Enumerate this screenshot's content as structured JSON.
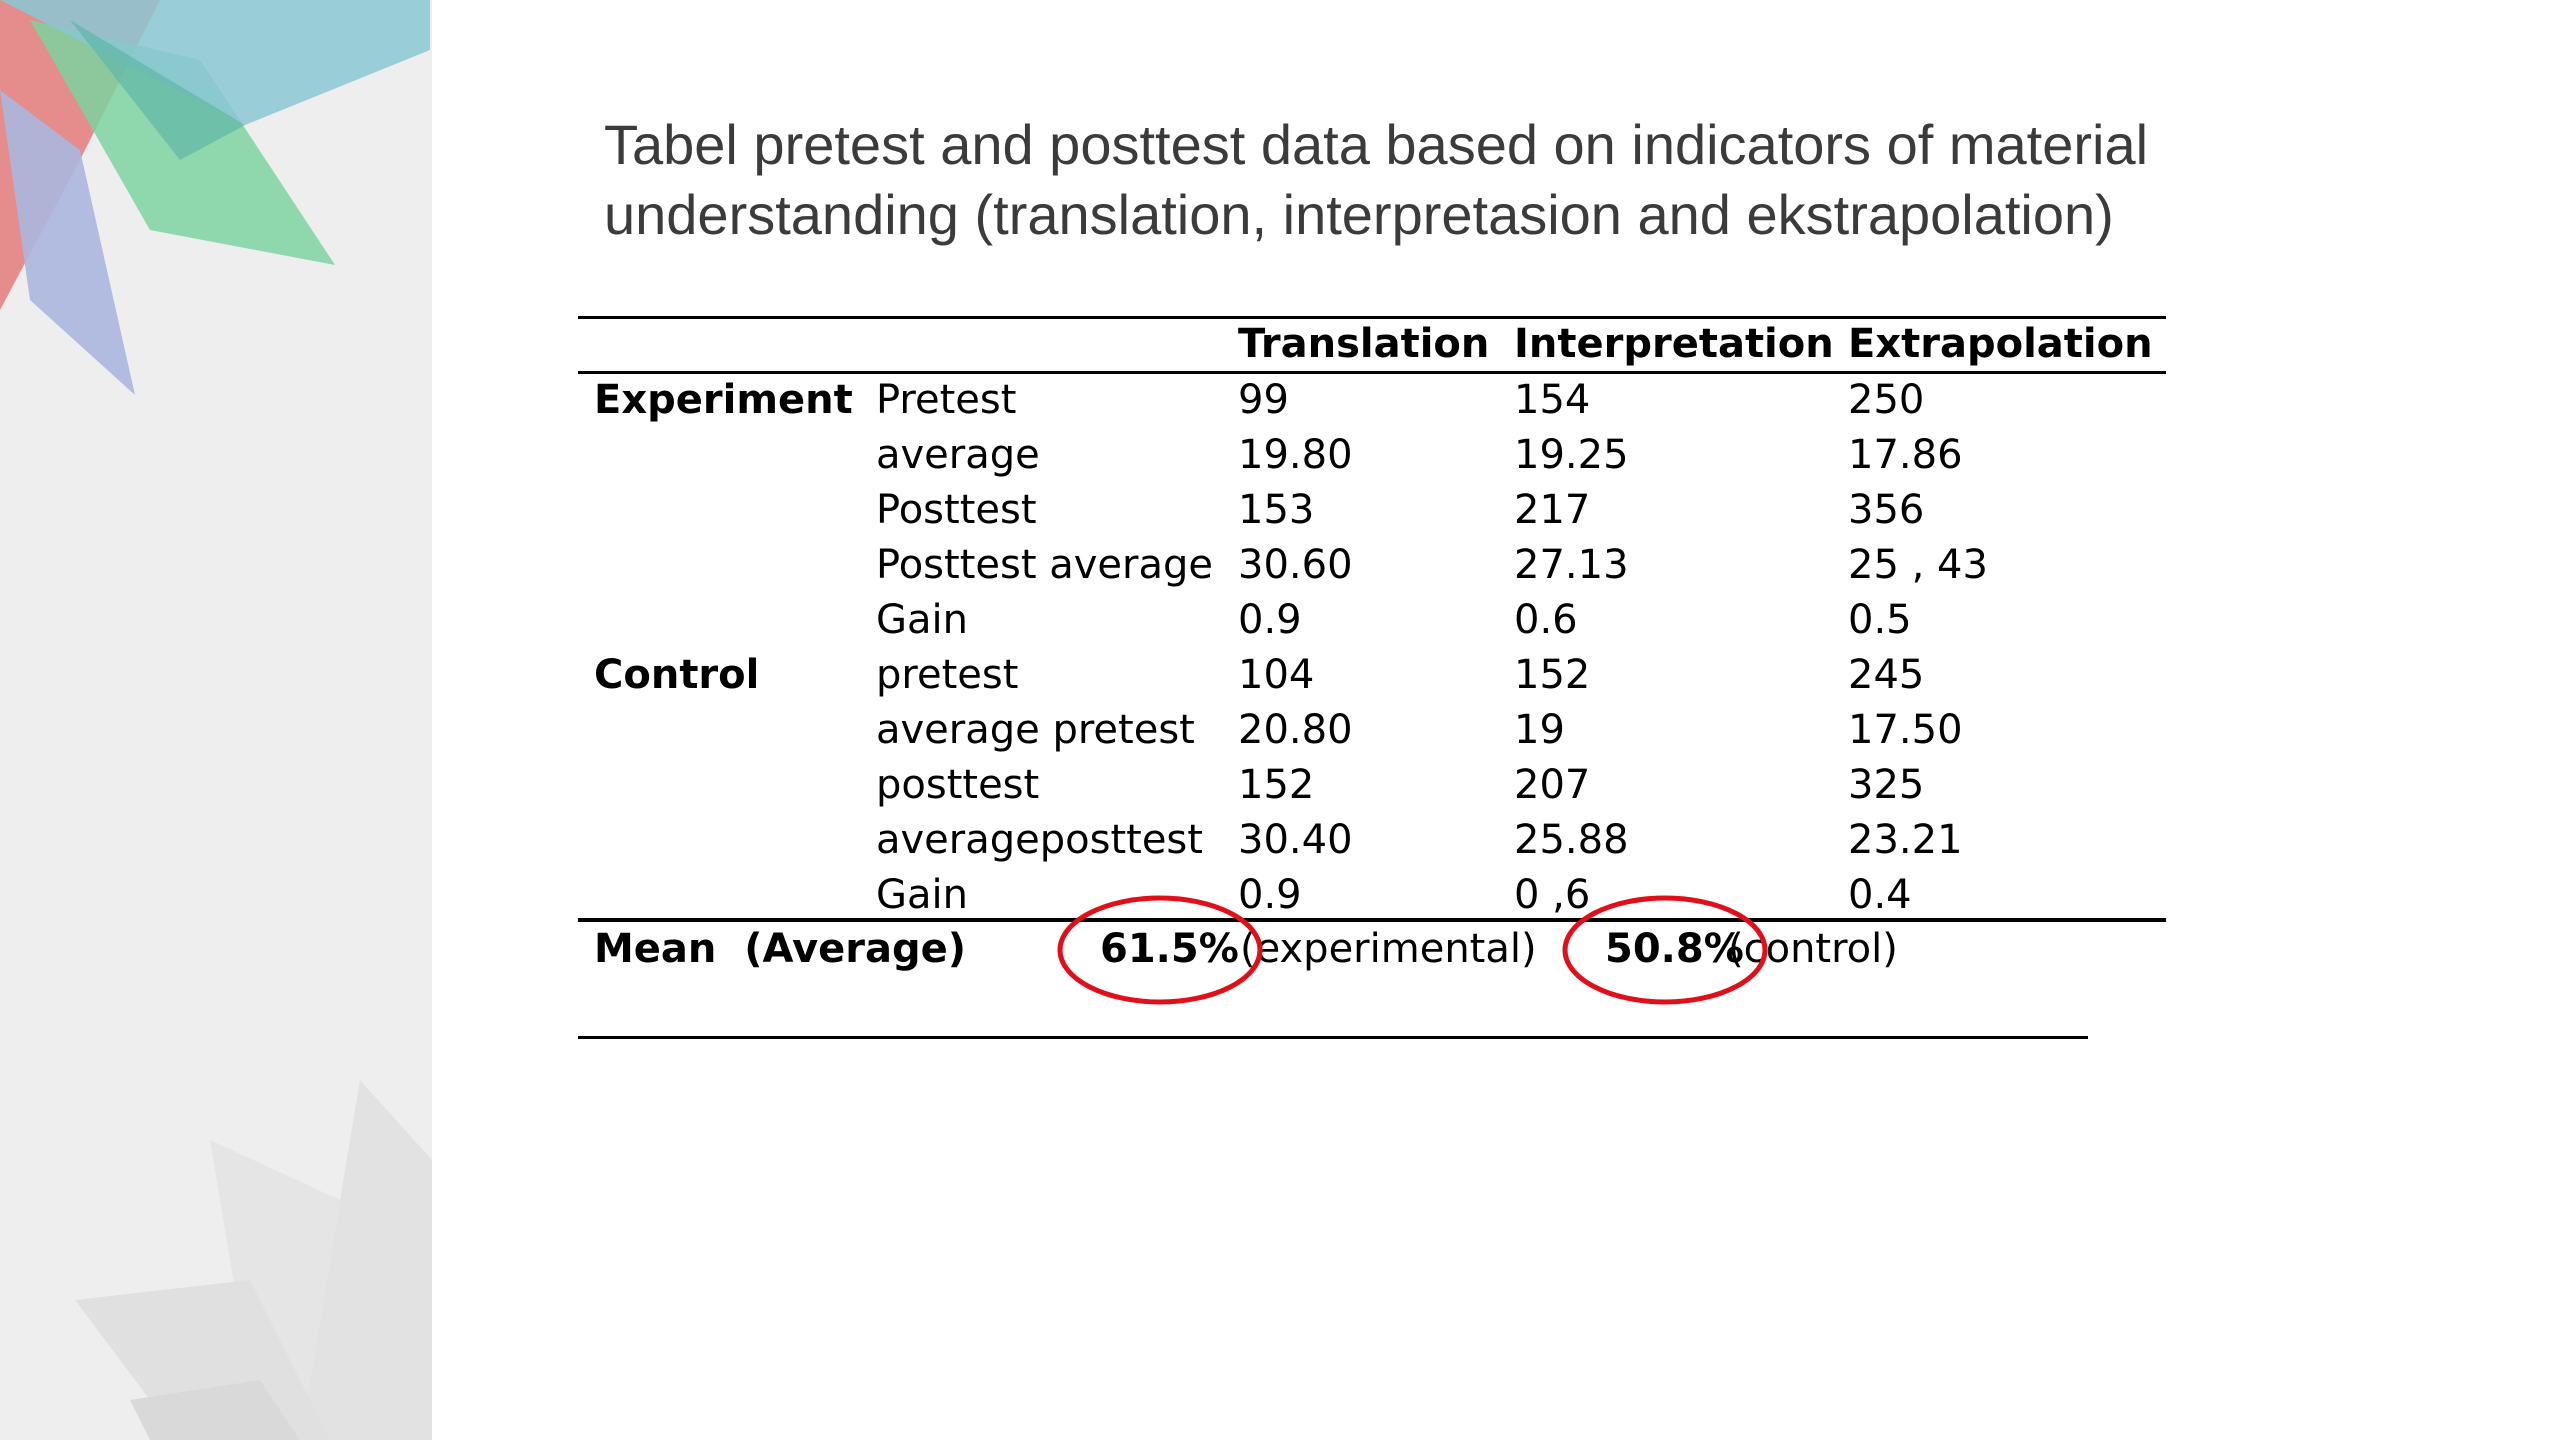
{
  "slide": {
    "title_line1": "Tabel pretest and posttest data based on indicators of material",
    "title_line2": "understanding (translation, interpretasion and ekstrapolation)"
  },
  "table": {
    "headers": [
      "Translation",
      "Interpretation",
      "Extrapolation"
    ],
    "groups": {
      "experiment": "Experiment",
      "control": "Control"
    },
    "rows": [
      {
        "label": "Pretest",
        "values": [
          "99",
          "154",
          "250"
        ]
      },
      {
        "label": "average",
        "values": [
          "19.80",
          "19.25",
          "17.86"
        ]
      },
      {
        "label": "Posttest",
        "values": [
          "153",
          "217",
          "356"
        ]
      },
      {
        "label": "Posttest average",
        "values": [
          "30.60",
          "27.13",
          "25 , 43"
        ]
      },
      {
        "label": "Gain",
        "values": [
          "0.9",
          "0.6",
          "0.5"
        ]
      },
      {
        "label": "pretest",
        "values": [
          "104",
          "152",
          "245"
        ]
      },
      {
        "label": "average pretest",
        "values": [
          "20.80",
          "19",
          "17.50"
        ]
      },
      {
        "label": "posttest",
        "values": [
          "152",
          "207",
          "325"
        ]
      },
      {
        "label": "averageposttest",
        "values": [
          "30.40",
          "25.88",
          "23.21"
        ]
      },
      {
        "label": "Gain",
        "values": [
          "0.9",
          "0 ,6",
          "0.4"
        ]
      }
    ],
    "mean": {
      "label": "Mean  (Average)",
      "experimental_value": "61.5%",
      "experimental_label": "(experimental)",
      "control_value": "50.8%",
      "control_label": "(control)"
    }
  },
  "colors": {
    "highlight_circle": "#e0101a",
    "title_text": "#3b3b3b",
    "sidebar_bg": "#eeeeee"
  }
}
